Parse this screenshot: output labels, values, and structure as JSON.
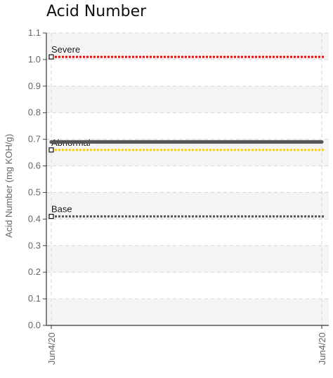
{
  "chart_data": {
    "type": "line",
    "title": "Acid Number",
    "ylabel": "Acid Number (mg KOH/g)",
    "xlabel": "",
    "ylim": [
      0.0,
      1.1
    ],
    "yticks": [
      "0.0",
      "0.1",
      "0.2",
      "0.3",
      "0.4",
      "0.5",
      "0.6",
      "0.7",
      "0.8",
      "0.9",
      "1.0",
      "1.1"
    ],
    "x": [
      "Jun4/20",
      "Jun4/20"
    ],
    "grid": true,
    "series": [
      {
        "values": [
          0.69,
          0.69
        ],
        "color": "#555555"
      }
    ],
    "reference_lines": [
      {
        "label": "Severe",
        "value": 1.01,
        "color": "#ff0000"
      },
      {
        "label": "Abnormal",
        "value": 0.66,
        "color": "#ffcc00"
      },
      {
        "label": "Base",
        "value": 0.41,
        "color": "#555555"
      }
    ]
  }
}
